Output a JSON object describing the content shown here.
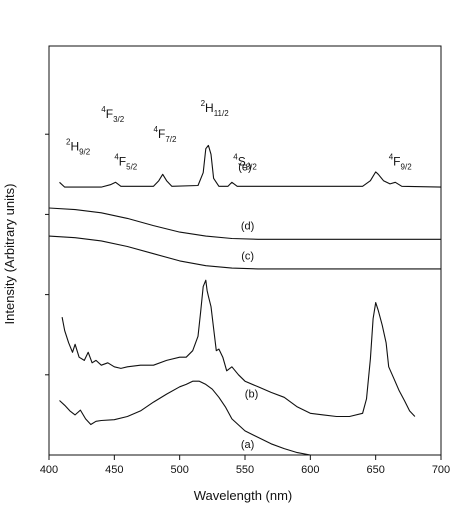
{
  "chart_data": {
    "type": "line",
    "title": "",
    "xlabel": "Wavelength (nm)",
    "ylabel": "Intensity (Arbitrary units)",
    "xlim": [
      400,
      700
    ],
    "ylim": [
      0,
      5.1
    ],
    "x_ticks": [
      400,
      450,
      500,
      550,
      600,
      650,
      700
    ],
    "grid": false,
    "legend": "none",
    "y_tick_positions": [
      1,
      2,
      3,
      4
    ],
    "line_color": "#111111",
    "series": [
      {
        "label": "(e)",
        "label_pos": [
          550,
          3.55
        ],
        "points": [
          [
            408,
            3.4
          ],
          [
            412,
            3.34
          ],
          [
            440,
            3.34
          ],
          [
            447,
            3.37
          ],
          [
            451,
            3.4
          ],
          [
            455,
            3.35
          ],
          [
            480,
            3.35
          ],
          [
            484,
            3.42
          ],
          [
            487,
            3.5
          ],
          [
            490,
            3.42
          ],
          [
            494,
            3.35
          ],
          [
            514,
            3.36
          ],
          [
            518,
            3.52
          ],
          [
            520,
            3.82
          ],
          [
            522,
            3.86
          ],
          [
            524,
            3.75
          ],
          [
            526,
            3.45
          ],
          [
            530,
            3.35
          ],
          [
            537,
            3.35
          ],
          [
            540,
            3.4
          ],
          [
            544,
            3.35
          ],
          [
            640,
            3.35
          ],
          [
            646,
            3.42
          ],
          [
            650,
            3.53
          ],
          [
            652,
            3.5
          ],
          [
            656,
            3.42
          ],
          [
            661,
            3.38
          ],
          [
            665,
            3.4
          ],
          [
            670,
            3.35
          ],
          [
            700,
            3.34
          ]
        ]
      },
      {
        "label": "(d)",
        "label_pos": [
          552,
          2.81
        ],
        "points": [
          [
            400,
            3.08
          ],
          [
            420,
            3.06
          ],
          [
            440,
            3.02
          ],
          [
            460,
            2.95
          ],
          [
            480,
            2.86
          ],
          [
            500,
            2.78
          ],
          [
            520,
            2.73
          ],
          [
            540,
            2.7
          ],
          [
            560,
            2.69
          ],
          [
            600,
            2.69
          ],
          [
            700,
            2.69
          ]
        ]
      },
      {
        "label": "(c)",
        "label_pos": [
          552,
          2.44
        ],
        "points": [
          [
            400,
            2.73
          ],
          [
            420,
            2.71
          ],
          [
            440,
            2.67
          ],
          [
            460,
            2.6
          ],
          [
            480,
            2.51
          ],
          [
            500,
            2.42
          ],
          [
            520,
            2.36
          ],
          [
            540,
            2.33
          ],
          [
            560,
            2.32
          ],
          [
            600,
            2.32
          ],
          [
            700,
            2.32
          ]
        ]
      },
      {
        "label": "(b)",
        "label_pos": [
          555,
          0.72
        ],
        "points": [
          [
            410,
            1.72
          ],
          [
            412,
            1.55
          ],
          [
            415,
            1.4
          ],
          [
            418,
            1.28
          ],
          [
            420,
            1.38
          ],
          [
            423,
            1.22
          ],
          [
            427,
            1.18
          ],
          [
            430,
            1.28
          ],
          [
            433,
            1.15
          ],
          [
            436,
            1.18
          ],
          [
            440,
            1.12
          ],
          [
            445,
            1.15
          ],
          [
            450,
            1.1
          ],
          [
            455,
            1.08
          ],
          [
            460,
            1.1
          ],
          [
            470,
            1.12
          ],
          [
            480,
            1.12
          ],
          [
            490,
            1.18
          ],
          [
            500,
            1.22
          ],
          [
            505,
            1.22
          ],
          [
            510,
            1.3
          ],
          [
            514,
            1.48
          ],
          [
            516,
            1.78
          ],
          [
            518,
            2.1
          ],
          [
            520,
            2.18
          ],
          [
            521,
            2.05
          ],
          [
            522,
            1.98
          ],
          [
            524,
            1.85
          ],
          [
            526,
            1.58
          ],
          [
            528,
            1.3
          ],
          [
            530,
            1.32
          ],
          [
            533,
            1.22
          ],
          [
            536,
            1.05
          ],
          [
            540,
            1.1
          ],
          [
            545,
            1.0
          ],
          [
            550,
            0.92
          ],
          [
            560,
            0.85
          ],
          [
            570,
            0.78
          ],
          [
            580,
            0.72
          ],
          [
            590,
            0.6
          ],
          [
            600,
            0.52
          ],
          [
            610,
            0.5
          ],
          [
            620,
            0.48
          ],
          [
            630,
            0.48
          ],
          [
            640,
            0.52
          ],
          [
            643,
            0.7
          ],
          [
            646,
            1.2
          ],
          [
            648,
            1.7
          ],
          [
            650,
            1.9
          ],
          [
            652,
            1.8
          ],
          [
            655,
            1.62
          ],
          [
            658,
            1.4
          ],
          [
            660,
            1.1
          ],
          [
            664,
            0.95
          ],
          [
            668,
            0.8
          ],
          [
            672,
            0.68
          ],
          [
            676,
            0.55
          ],
          [
            680,
            0.48
          ]
        ]
      },
      {
        "label": "(a)",
        "label_pos": [
          552,
          0.09
        ],
        "points": [
          [
            408,
            0.68
          ],
          [
            412,
            0.62
          ],
          [
            416,
            0.55
          ],
          [
            420,
            0.5
          ],
          [
            424,
            0.56
          ],
          [
            428,
            0.45
          ],
          [
            432,
            0.38
          ],
          [
            436,
            0.42
          ],
          [
            440,
            0.43
          ],
          [
            450,
            0.44
          ],
          [
            460,
            0.48
          ],
          [
            470,
            0.55
          ],
          [
            480,
            0.66
          ],
          [
            490,
            0.76
          ],
          [
            500,
            0.85
          ],
          [
            505,
            0.88
          ],
          [
            510,
            0.92
          ],
          [
            515,
            0.92
          ],
          [
            520,
            0.88
          ],
          [
            525,
            0.82
          ],
          [
            530,
            0.72
          ],
          [
            535,
            0.6
          ],
          [
            540,
            0.45
          ],
          [
            550,
            0.3
          ],
          [
            560,
            0.22
          ],
          [
            570,
            0.14
          ],
          [
            580,
            0.08
          ],
          [
            590,
            0.03
          ],
          [
            600,
            0.0
          ]
        ]
      }
    ],
    "annotations": [
      {
        "base": "H",
        "sup": "2",
        "sub": "9/2",
        "x": 413,
        "y": 3.8
      },
      {
        "base": "F",
        "sup": "4",
        "sub": "3/2",
        "x": 440,
        "y": 4.2
      },
      {
        "base": "F",
        "sup": "4",
        "sub": "5/2",
        "x": 450,
        "y": 3.61
      },
      {
        "base": "F",
        "sup": "4",
        "sub": "7/2",
        "x": 480,
        "y": 3.95
      },
      {
        "base": "H",
        "sup": "2",
        "sub": "11/2",
        "x": 516,
        "y": 4.28
      },
      {
        "base": "S",
        "sup": "4",
        "sub": "3/2",
        "x": 541,
        "y": 3.61
      },
      {
        "base": "F",
        "sup": "4",
        "sub": "9/2",
        "x": 660,
        "y": 3.61
      }
    ]
  }
}
